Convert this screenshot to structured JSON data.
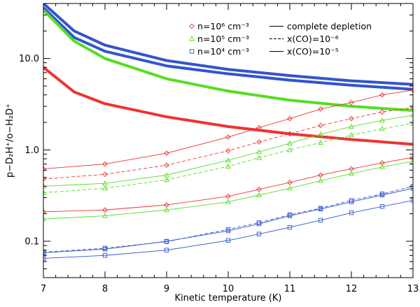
{
  "chart_data": {
    "type": "line",
    "xlabel": "Kinetic temperature (K)",
    "ylabel": "p−D₂H⁺/o−H₂D⁺",
    "xlim": [
      7,
      13
    ],
    "ylim": [
      0.04,
      40
    ],
    "yscale": "log",
    "grid": false,
    "legend_position": "top-right",
    "x_ticks": [
      7,
      8,
      9,
      10,
      11,
      12,
      13
    ],
    "x_tick_labels": [
      "7",
      "8",
      "9",
      "10",
      "11",
      "12",
      "13"
    ],
    "y_ticks": [
      0.1,
      1.0,
      10.0
    ],
    "y_tick_labels": [
      "0.1",
      "1.0",
      "10.0"
    ],
    "colors": {
      "n6": "#ee3333",
      "n5": "#55dd22",
      "n4": "#3355cc"
    },
    "legend": {
      "density": [
        {
          "name": "n=10⁶ cm⁻³",
          "marker": "diamond",
          "color_key": "n6"
        },
        {
          "name": "n=10⁵ cm⁻³",
          "marker": "triangle",
          "color_key": "n5"
        },
        {
          "name": "n=10⁴ cm⁻³",
          "marker": "square",
          "color_key": "n4"
        }
      ],
      "style": [
        {
          "name": "complete depletion",
          "line": "thick"
        },
        {
          "name": "x(CO)=10⁻⁶",
          "line": "dashed"
        },
        {
          "name": "x(CO)=10⁻⁵",
          "line": "solid"
        }
      ]
    },
    "series": [
      {
        "color_key": "n4",
        "style": "thick",
        "marker": "none",
        "x": [
          7,
          7.5,
          8,
          9,
          10,
          11,
          12,
          13
        ],
        "y": [
          40,
          20,
          14,
          9.5,
          7.6,
          6.5,
          5.7,
          5.2
        ]
      },
      {
        "color_key": "n4",
        "style": "thick",
        "marker": "none",
        "x": [
          7,
          7.5,
          8,
          9,
          10,
          11,
          12,
          13
        ],
        "y": [
          36,
          17,
          12,
          8.3,
          6.8,
          5.8,
          5.1,
          4.6
        ]
      },
      {
        "color_key": "n5",
        "style": "thick",
        "marker": "none",
        "x": [
          7,
          7.5,
          8,
          9,
          10,
          11,
          12,
          13
        ],
        "y": [
          34,
          15.5,
          10,
          6.0,
          4.4,
          3.5,
          3.0,
          2.7
        ]
      },
      {
        "color_key": "n6",
        "style": "thick",
        "marker": "none",
        "x": [
          7,
          7.5,
          8,
          9,
          10,
          11,
          12,
          13
        ],
        "y": [
          8.0,
          4.3,
          3.2,
          2.3,
          1.8,
          1.5,
          1.3,
          1.15
        ]
      },
      {
        "color_key": "n6",
        "style": "solid",
        "marker": "diamond",
        "x": [
          7,
          8,
          9,
          10,
          10.5,
          11,
          11.5,
          12,
          12.5,
          13
        ],
        "y": [
          0.62,
          0.7,
          0.92,
          1.38,
          1.75,
          2.2,
          2.8,
          3.3,
          4.0,
          4.5
        ]
      },
      {
        "color_key": "n6",
        "style": "dashed",
        "marker": "diamond",
        "x": [
          7,
          8,
          9,
          10,
          10.5,
          11,
          11.5,
          12,
          12.5,
          13
        ],
        "y": [
          0.48,
          0.54,
          0.68,
          0.98,
          1.22,
          1.5,
          1.85,
          2.2,
          2.6,
          2.9
        ]
      },
      {
        "color_key": "n5",
        "style": "solid",
        "marker": "triangle",
        "x": [
          7,
          8,
          9,
          10,
          10.5,
          11,
          11.5,
          12,
          12.5,
          13
        ],
        "y": [
          0.4,
          0.43,
          0.53,
          0.77,
          0.95,
          1.18,
          1.48,
          1.8,
          2.1,
          2.4
        ]
      },
      {
        "color_key": "n5",
        "style": "dashed",
        "marker": "triangle",
        "x": [
          7,
          8,
          9,
          10,
          10.5,
          11,
          11.5,
          12,
          12.5,
          13
        ],
        "y": [
          0.34,
          0.38,
          0.47,
          0.66,
          0.82,
          1.0,
          1.2,
          1.45,
          1.7,
          1.95
        ]
      },
      {
        "color_key": "n6",
        "style": "solid",
        "marker": "diamond",
        "x": [
          7,
          8,
          9,
          10,
          10.5,
          11,
          11.5,
          12,
          12.5,
          13
        ],
        "y": [
          0.21,
          0.22,
          0.25,
          0.31,
          0.37,
          0.44,
          0.53,
          0.62,
          0.72,
          0.83
        ]
      },
      {
        "color_key": "n5",
        "style": "solid",
        "marker": "triangle",
        "x": [
          7,
          8,
          9,
          10,
          10.5,
          11,
          11.5,
          12,
          12.5,
          13
        ],
        "y": [
          0.175,
          0.19,
          0.22,
          0.27,
          0.32,
          0.38,
          0.46,
          0.55,
          0.65,
          0.75
        ]
      },
      {
        "color_key": "n4",
        "style": "solid",
        "marker": "square",
        "x": [
          7,
          8,
          9,
          10,
          10.5,
          11,
          11.5,
          12,
          12.5,
          13
        ],
        "y": [
          0.075,
          0.082,
          0.1,
          0.13,
          0.155,
          0.19,
          0.225,
          0.27,
          0.32,
          0.38
        ]
      },
      {
        "color_key": "n4",
        "style": "dashed",
        "marker": "square",
        "x": [
          7,
          8,
          9,
          10,
          10.5,
          11,
          11.5,
          12,
          12.5,
          13
        ],
        "y": [
          0.076,
          0.084,
          0.099,
          0.135,
          0.16,
          0.195,
          0.23,
          0.28,
          0.33,
          0.4
        ]
      },
      {
        "color_key": "n4",
        "style": "solid",
        "marker": "square",
        "x": [
          7,
          8,
          9,
          10,
          10.5,
          11,
          11.5,
          12,
          12.5,
          13
        ],
        "y": [
          0.065,
          0.07,
          0.08,
          0.102,
          0.12,
          0.142,
          0.17,
          0.205,
          0.24,
          0.28
        ]
      }
    ]
  }
}
